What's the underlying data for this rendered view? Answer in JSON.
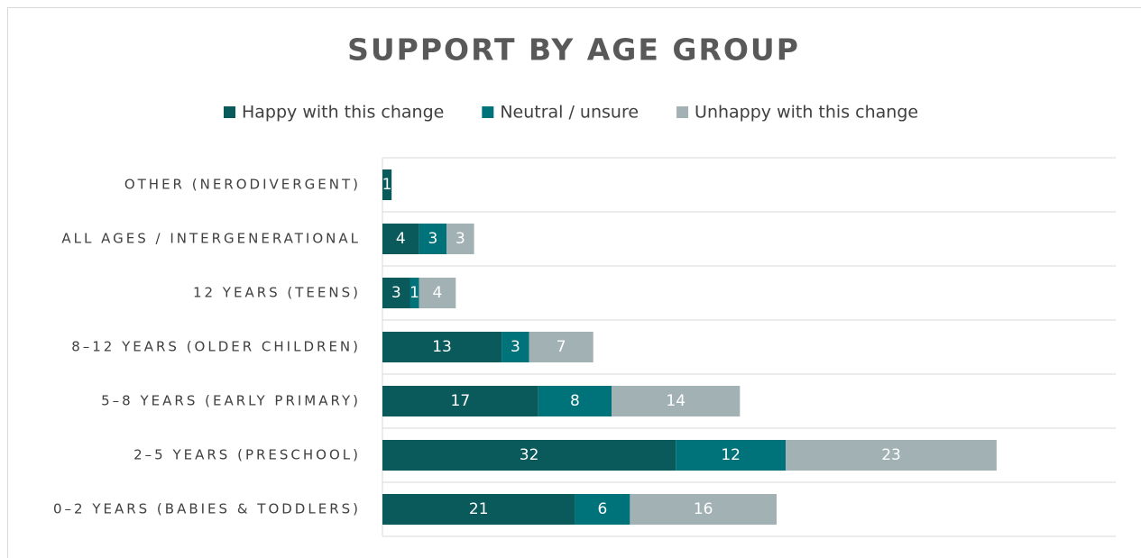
{
  "chart_data": {
    "type": "stacked-barh",
    "title": "SUPPORT BY AGE GROUP",
    "categories": [
      "OTHER (NERODIVERGENT)",
      "ALL AGES / INTERGENERATIONAL",
      "12 YEARS (TEENS)",
      "8–12 YEARS (OLDER CHILDREN)",
      "5–8 YEARS (EARLY PRIMARY)",
      "2–5 YEARS (PRESCHOOL)",
      "0–2 YEARS (BABIES & TODDLERS)"
    ],
    "series": [
      {
        "name": "Happy with this change",
        "color": "#0b5a5b",
        "values": [
          1,
          4,
          3,
          13,
          17,
          32,
          21
        ]
      },
      {
        "name": "Neutral / unsure",
        "color": "#00727a",
        "values": [
          null,
          3,
          1,
          3,
          8,
          12,
          6
        ]
      },
      {
        "name": "Unhappy with this change",
        "color": "#a2b1b4",
        "values": [
          null,
          3,
          4,
          7,
          14,
          23,
          16
        ]
      }
    ],
    "xlim": [
      0,
      80
    ],
    "legend": "top"
  }
}
